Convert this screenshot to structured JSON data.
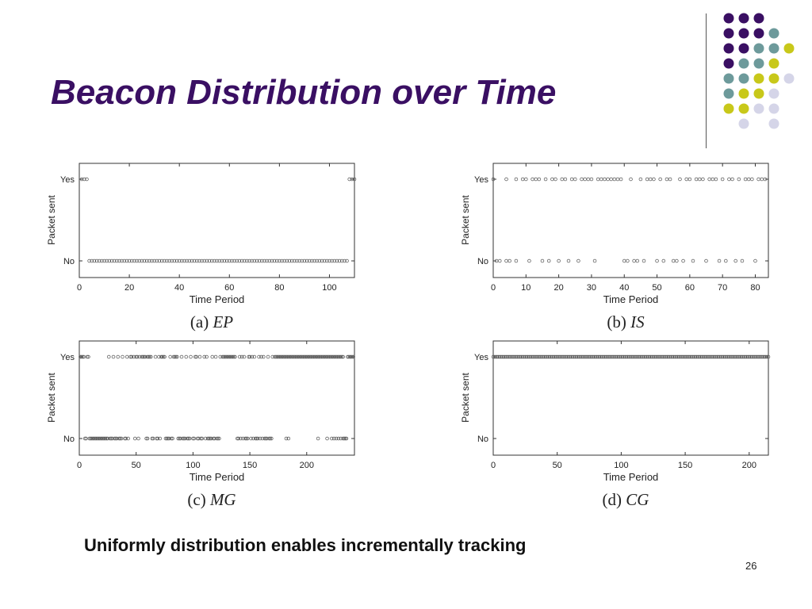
{
  "slide": {
    "title": "Beacon Distribution over Time",
    "footnote": "Uniformly distribution enables incrementally tracking",
    "page_number": "26",
    "title_color": "#3a0f63"
  },
  "decoration": {
    "dot_colors": {
      "purple": "#3a0f63",
      "teal": "#6d9a9b",
      "yellow": "#c8c81a",
      "lavender": "#d5d5e8"
    },
    "dot_rows": [
      [
        "purple",
        "purple",
        "purple",
        null,
        null
      ],
      [
        "purple",
        "purple",
        "purple",
        "teal",
        null
      ],
      [
        "purple",
        "purple",
        "teal",
        "teal",
        "yellow"
      ],
      [
        "purple",
        "teal",
        "teal",
        "yellow",
        null
      ],
      [
        "teal",
        "teal",
        "yellow",
        "yellow",
        "lavender"
      ],
      [
        "teal",
        "yellow",
        "yellow",
        "lavender",
        null
      ],
      [
        "yellow",
        "yellow",
        "lavender",
        "lavender",
        null
      ],
      [
        null,
        "lavender",
        null,
        "lavender",
        null
      ]
    ]
  },
  "chart_data": [
    {
      "type": "scatter",
      "caption_prefix": "(a)",
      "caption_tag": "EP",
      "xlabel": "Time Period",
      "ylabel": "Packet sent",
      "xlim": [
        0,
        110
      ],
      "xticks": [
        0,
        20,
        40,
        60,
        80,
        100
      ],
      "y_categories": [
        "No",
        "Yes"
      ],
      "series": [
        {
          "y": "Yes",
          "x": [
            1,
            2,
            3,
            108,
            109,
            110
          ]
        },
        {
          "y": "No",
          "x": [
            4,
            5,
            6,
            7,
            8,
            9,
            10,
            11,
            12,
            13,
            14,
            15,
            16,
            17,
            18,
            19,
            20,
            21,
            22,
            23,
            24,
            25,
            26,
            27,
            28,
            29,
            30,
            31,
            32,
            33,
            34,
            35,
            36,
            37,
            38,
            39,
            40,
            41,
            42,
            43,
            44,
            45,
            46,
            47,
            48,
            49,
            50,
            51,
            52,
            53,
            54,
            55,
            56,
            57,
            58,
            59,
            60,
            61,
            62,
            63,
            64,
            65,
            66,
            67,
            68,
            69,
            70,
            71,
            72,
            73,
            74,
            75,
            76,
            77,
            78,
            79,
            80,
            81,
            82,
            83,
            84,
            85,
            86,
            87,
            88,
            89,
            90,
            91,
            92,
            93,
            94,
            95,
            96,
            97,
            98,
            99,
            100,
            101,
            102,
            103,
            104,
            105,
            106,
            107
          ]
        }
      ]
    },
    {
      "type": "scatter",
      "caption_prefix": "(b)",
      "caption_tag": "IS",
      "xlabel": "Time Period",
      "ylabel": "Packet sent",
      "xlim": [
        0,
        84
      ],
      "xticks": [
        0,
        10,
        20,
        30,
        40,
        50,
        60,
        70,
        80
      ],
      "y_categories": [
        "No",
        "Yes"
      ],
      "series": [
        {
          "y": "Yes",
          "x": [
            0,
            4,
            7,
            9,
            10,
            12,
            13,
            14,
            16,
            18,
            19,
            21,
            22,
            24,
            25,
            27,
            28,
            29,
            30,
            32,
            33,
            34,
            35,
            36,
            37,
            38,
            39,
            42,
            45,
            47,
            48,
            49,
            51,
            53,
            54,
            57,
            59,
            60,
            62,
            63,
            64,
            66,
            67,
            68,
            70,
            72,
            73,
            75,
            77,
            78,
            79,
            81,
            82,
            83
          ]
        },
        {
          "y": "No",
          "x": [
            1,
            2,
            4,
            5,
            7,
            11,
            15,
            17,
            20,
            23,
            26,
            31,
            40,
            41,
            43,
            44,
            46,
            50,
            52,
            55,
            56,
            58,
            61,
            65,
            69,
            71,
            74,
            76,
            80
          ]
        }
      ]
    },
    {
      "type": "scatter",
      "caption_prefix": "(c)",
      "caption_tag": "MG",
      "xlabel": "Time Period",
      "ylabel": "Packet sent",
      "xlim": [
        0,
        242
      ],
      "xticks": [
        0,
        50,
        100,
        150,
        200
      ],
      "y_categories": [
        "No",
        "Yes"
      ],
      "series": [
        {
          "y": "Yes",
          "x": [
            1,
            2,
            3,
            4,
            7,
            8,
            26,
            30,
            34,
            38,
            42,
            45,
            46,
            48,
            50,
            51,
            53,
            55,
            56,
            57,
            58,
            60,
            61,
            62,
            63,
            67,
            70,
            72,
            73,
            74,
            75,
            80,
            83,
            84,
            85,
            86,
            90,
            94,
            98,
            102,
            103,
            106,
            110,
            112,
            117,
            120,
            124,
            126,
            127,
            128,
            129,
            130,
            131,
            132,
            133,
            134,
            135,
            136,
            137,
            141,
            143,
            145,
            149,
            150,
            152,
            154,
            158,
            160,
            162,
            166,
            170,
            172,
            173,
            174,
            175,
            176,
            177,
            178,
            179,
            180,
            181,
            182,
            183,
            184,
            185,
            186,
            187,
            188,
            189,
            190,
            191,
            192,
            193,
            194,
            195,
            196,
            197,
            198,
            199,
            200,
            201,
            202,
            203,
            204,
            205,
            206,
            207,
            208,
            209,
            210,
            211,
            212,
            213,
            214,
            215,
            216,
            217,
            218,
            219,
            220,
            221,
            222,
            223,
            224,
            225,
            226,
            227,
            228,
            229,
            230,
            231,
            232,
            236,
            237,
            238,
            239,
            240,
            241
          ]
        },
        {
          "y": "No",
          "x": [
            5,
            6,
            9,
            10,
            11,
            12,
            13,
            14,
            15,
            16,
            17,
            18,
            19,
            20,
            21,
            22,
            23,
            24,
            25,
            27,
            28,
            29,
            31,
            32,
            33,
            35,
            36,
            37,
            40,
            41,
            43,
            49,
            52,
            59,
            60,
            64,
            65,
            68,
            69,
            71,
            76,
            77,
            78,
            79,
            81,
            82,
            87,
            88,
            89,
            91,
            92,
            93,
            95,
            96,
            97,
            100,
            101,
            104,
            105,
            107,
            108,
            111,
            113,
            114,
            115,
            116,
            118,
            119,
            121,
            122,
            123,
            139,
            140,
            142,
            144,
            146,
            147,
            148,
            151,
            153,
            155,
            156,
            157,
            159,
            161,
            163,
            164,
            165,
            167,
            168,
            169,
            182,
            184,
            210,
            218,
            222,
            224,
            226,
            228,
            230,
            232,
            233,
            234,
            235
          ]
        }
      ]
    },
    {
      "type": "scatter",
      "caption_prefix": "(d)",
      "caption_tag": "CG",
      "xlabel": "Time Period",
      "ylabel": "Packet sent",
      "xlim": [
        0,
        215
      ],
      "xticks": [
        0,
        50,
        100,
        150,
        200
      ],
      "y_categories": [
        "No",
        "Yes"
      ],
      "series": [
        {
          "y": "Yes",
          "x_range": [
            0,
            215
          ]
        },
        {
          "y": "No",
          "x": []
        }
      ]
    }
  ]
}
